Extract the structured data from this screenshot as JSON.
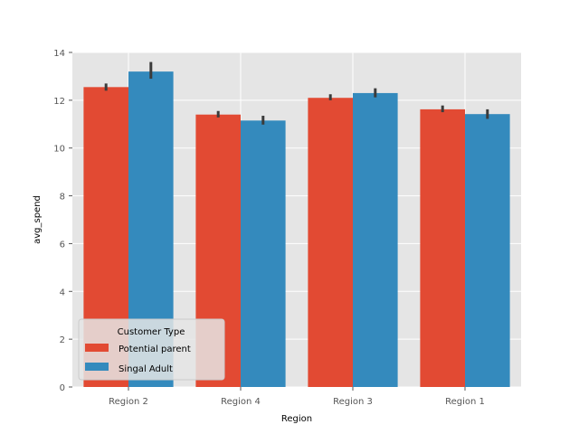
{
  "chart_data": {
    "type": "bar",
    "title": "",
    "xlabel": "Region",
    "ylabel": "avg_spend",
    "categories": [
      "Region 2",
      "Region 4",
      "Region 3",
      "Region 1"
    ],
    "ylim": [
      0,
      14
    ],
    "yticks": [
      0,
      2,
      4,
      6,
      8,
      10,
      12,
      14
    ],
    "grid": true,
    "legend": {
      "title": "Customer Type",
      "placement": "lower-left"
    },
    "series": [
      {
        "name": "Potential parent",
        "color": "#E24A33",
        "values": [
          12.55,
          11.4,
          12.1,
          11.62
        ],
        "error_low": [
          12.4,
          11.28,
          12.0,
          11.5
        ],
        "error_high": [
          12.7,
          11.55,
          12.25,
          11.78
        ]
      },
      {
        "name": "Singal Adult",
        "color": "#348ABD",
        "values": [
          13.2,
          11.15,
          12.3,
          11.42
        ],
        "error_low": [
          12.9,
          10.98,
          12.12,
          11.22
        ],
        "error_high": [
          13.6,
          11.35,
          12.5,
          11.62
        ]
      }
    ]
  }
}
